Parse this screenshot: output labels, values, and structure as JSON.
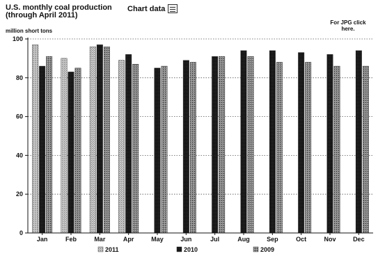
{
  "header": {
    "title": "U.S. monthly coal production (through April 2011)",
    "chart_data_link": "Chart data",
    "jpg_note": "For JPG click here."
  },
  "chart_data": {
    "type": "bar",
    "title": "U.S. monthly coal production (through April 2011)",
    "xlabel": "",
    "ylabel": "million short tons",
    "ylim": [
      0,
      100
    ],
    "yticks": [
      0,
      20,
      40,
      60,
      80,
      100
    ],
    "grid": true,
    "legend_position": "bottom",
    "categories": [
      "Jan",
      "Feb",
      "Mar",
      "Apr",
      "May",
      "Jun",
      "Jul",
      "Aug",
      "Sep",
      "Oct",
      "Nov",
      "Dec"
    ],
    "series": [
      {
        "name": "2011",
        "color": "#b8b8b8",
        "values": [
          97,
          90,
          96,
          89,
          null,
          null,
          null,
          null,
          null,
          null,
          null,
          null
        ]
      },
      {
        "name": "2010",
        "color": "#1a1a1a",
        "values": [
          86,
          83,
          97,
          92,
          85,
          89,
          91,
          94,
          94,
          93,
          92,
          94
        ]
      },
      {
        "name": "2009",
        "color": "#7a7a7a",
        "values": [
          91,
          85,
          96,
          87,
          86,
          88,
          91,
          91,
          88,
          88,
          86,
          86
        ]
      }
    ]
  }
}
